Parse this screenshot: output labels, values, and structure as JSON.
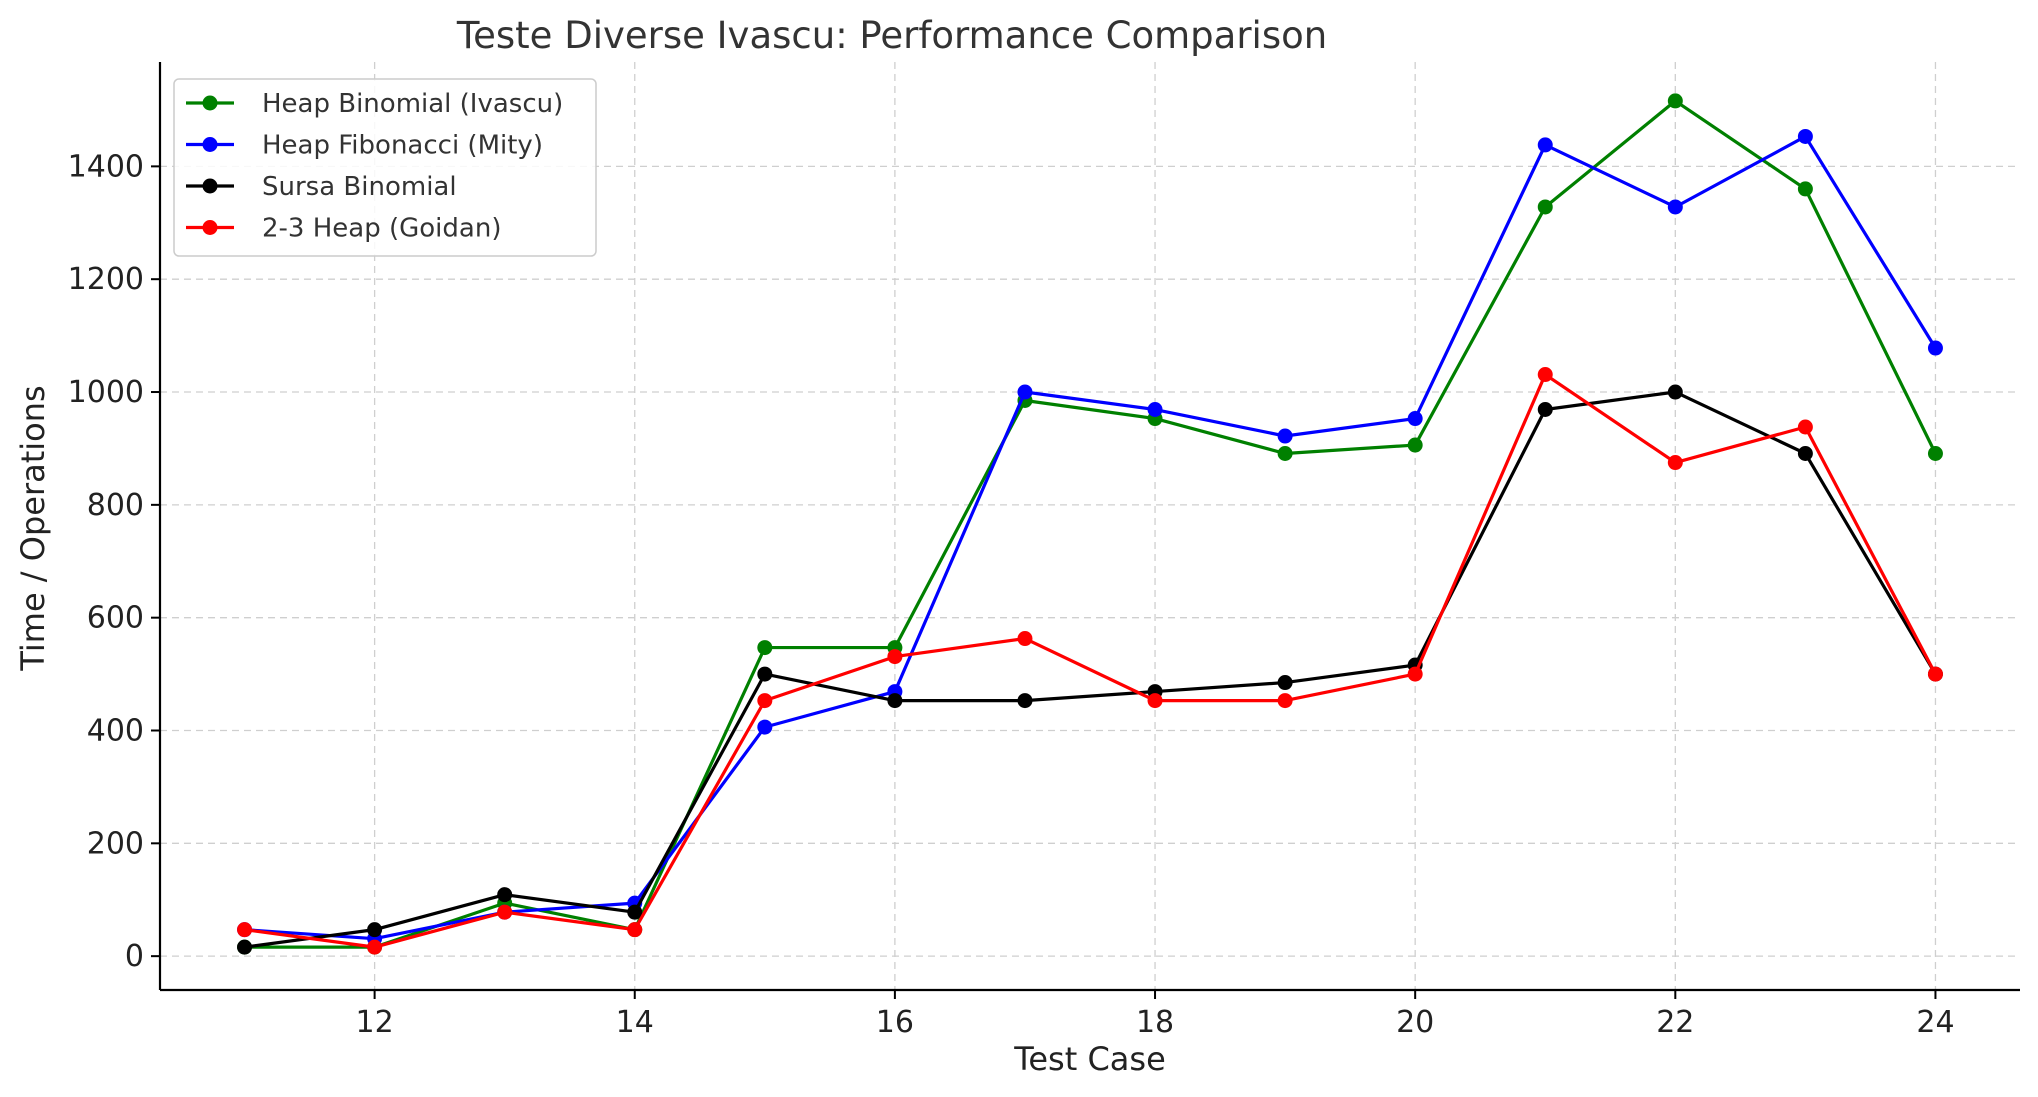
{
  "chart_data": {
    "type": "line",
    "title": "Teste Diverse Ivascu: Performance Comparison",
    "xlabel": "Test Case",
    "ylabel": "Time / Operations",
    "x": [
      11,
      12,
      13,
      14,
      15,
      16,
      17,
      18,
      19,
      20,
      21,
      22,
      23,
      24
    ],
    "xlim": [
      10.35,
      24.65
    ],
    "ylim": [
      -60,
      1585
    ],
    "xticks": [
      12,
      14,
      16,
      18,
      20,
      22,
      24
    ],
    "yticks": [
      0,
      200,
      400,
      600,
      800,
      1000,
      1200,
      1400
    ],
    "grid": true,
    "legend_position": "upper-left",
    "series": [
      {
        "name": "Heap Binomial (Ivascu)",
        "color": "#008000",
        "values": [
          16,
          16,
          94,
          47,
          547,
          547,
          985,
          953,
          891,
          906,
          1328,
          1516,
          1360,
          891
        ]
      },
      {
        "name": "Heap Fibonacci (Mity)",
        "color": "#0000ff",
        "values": [
          47,
          31,
          78,
          94,
          406,
          469,
          1000,
          969,
          922,
          953,
          1438,
          1328,
          1453,
          1078
        ]
      },
      {
        "name": "Sursa Binomial",
        "color": "#000000",
        "values": [
          16,
          47,
          109,
          78,
          500,
          453,
          453,
          469,
          485,
          516,
          969,
          1000,
          891,
          500
        ]
      },
      {
        "name": "2-3 Heap (Goidan)",
        "color": "#ff0000",
        "values": [
          47,
          16,
          78,
          47,
          453,
          531,
          563,
          453,
          453,
          500,
          1031,
          875,
          938,
          500
        ]
      }
    ]
  }
}
